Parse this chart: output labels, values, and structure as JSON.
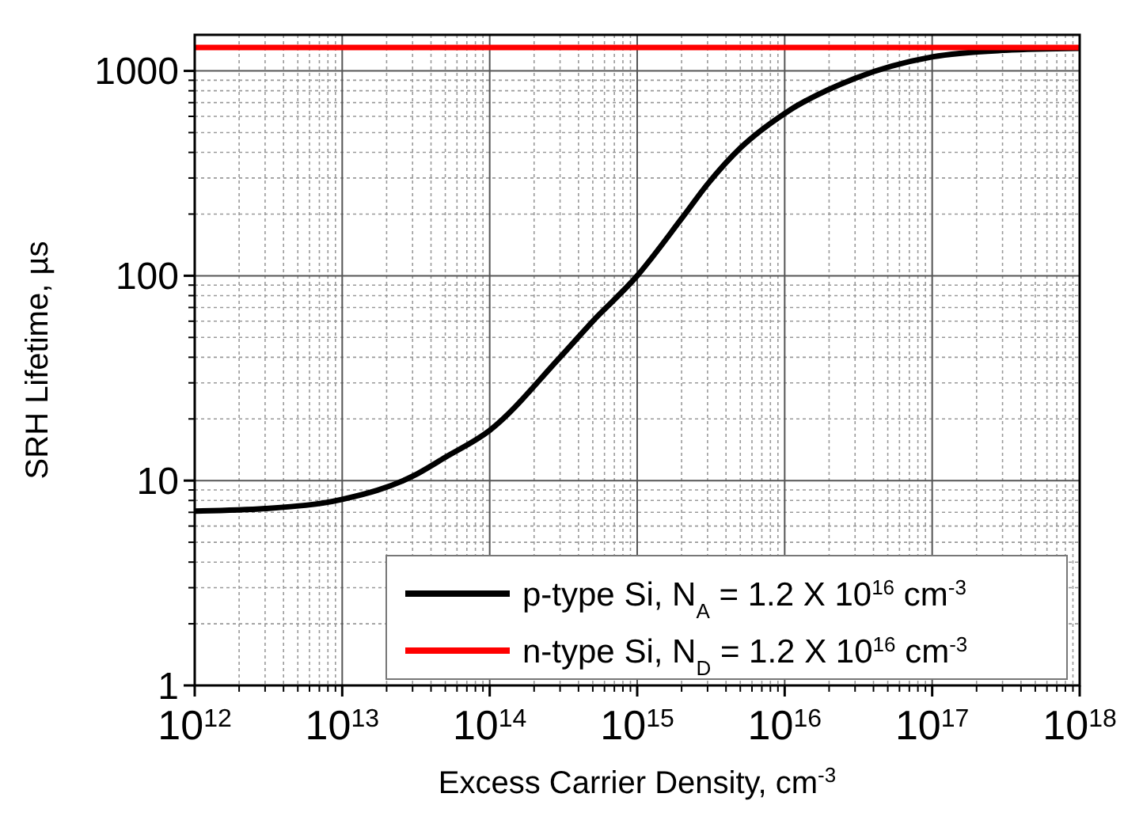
{
  "chart_data": {
    "type": "line",
    "xlabel": "Excess Carrier Density, cm$^{-3}$",
    "ylabel": "SRH Lifetime,  µs",
    "log": "xy",
    "grid": true,
    "legend": "bottom right",
    "line_style": "solid",
    "xlim": [
      1000000000000.0,
      1e+18
    ],
    "ylim": [
      1,
      1500
    ],
    "xticks": [
      {
        "value": 1000000000000.0,
        "label": "10$^{12}$"
      },
      {
        "value": 10000000000000.0,
        "label": "10$^{13}$"
      },
      {
        "value": 100000000000000.0,
        "label": "10$^{14}$"
      },
      {
        "value": 1000000000000000.0,
        "label": "10$^{15}$"
      },
      {
        "value": 1e+16,
        "label": "10$^{16}$"
      },
      {
        "value": 1e+17,
        "label": "10$^{17}$"
      },
      {
        "value": 1e+18,
        "label": "10$^{18}$"
      }
    ],
    "yticks": [
      1,
      10,
      100,
      1000
    ],
    "series": [
      {
        "name": "p-type Si, N$_{A}$ = 1.2 X 10$^{16}$ cm$^{-3}$",
        "color": "#000000",
        "x": [
          1000000000000.0,
          3000000000000.0,
          10000000000000.0,
          30000000000000.0,
          50000000000000.0,
          100000000000000.0,
          300000000000000.0,
          500000000000000.0,
          1000000000000000.0,
          2000000000000000.0,
          3000000000000000.0,
          5000000000000000.0,
          1e+16,
          3e+16,
          1e+17,
          3e+17,
          1e+18
        ],
        "values": [
          7.1,
          7.3,
          8.1,
          10.5,
          13,
          17.6,
          40,
          60,
          100,
          190,
          280,
          420,
          620,
          920,
          1170,
          1260,
          1290
        ]
      },
      {
        "name": "n-type Si, N$_{D}$ = 1.2 X 10$^{16}$ cm$^{-3}$",
        "color": "#ff0000",
        "x": [
          1000000000000.0,
          1e+18
        ],
        "values": [
          1300,
          1300
        ]
      }
    ]
  }
}
